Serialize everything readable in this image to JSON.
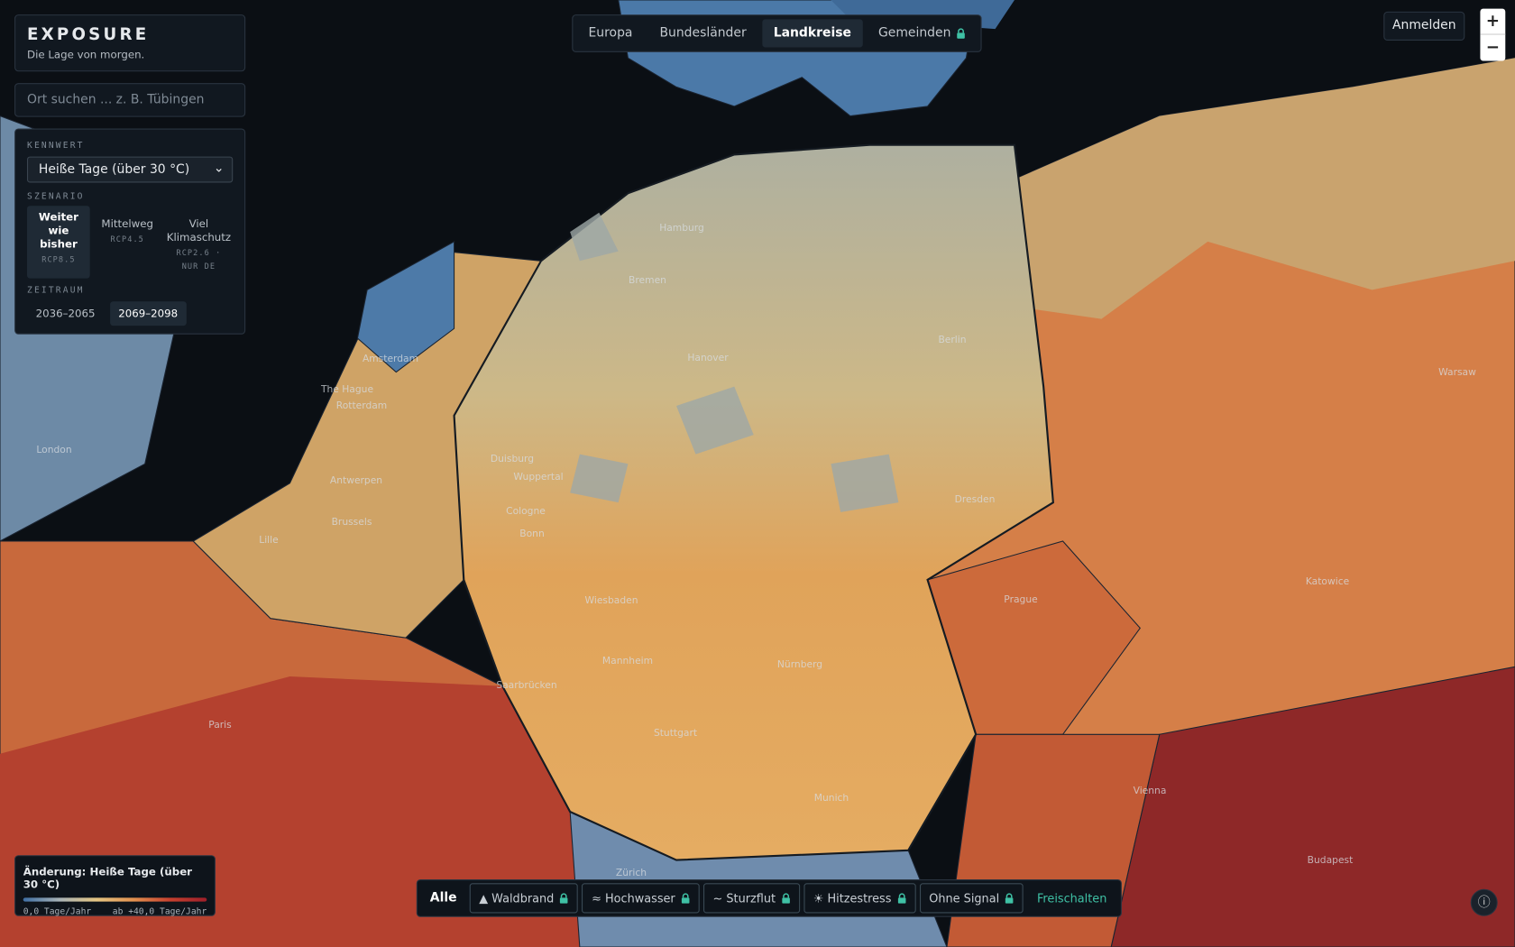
{
  "brand": {
    "logo": "EXPOSURE",
    "tagline": "Die Lage von morgen."
  },
  "search": {
    "placeholder": "Ort suchen ... z. B. Tübingen"
  },
  "panel": {
    "kennwert_label": "KENNWERT",
    "kennwert_value": "Heiße Tage (über 30 °C)",
    "szenario_label": "SZENARIO",
    "scenarios": [
      {
        "name": "Weiter wie bisher",
        "code": "RCP8.5"
      },
      {
        "name": "Mittelweg",
        "code": "RCP4.5"
      },
      {
        "name": "Viel Klimaschutz",
        "code": "RCP2.6 · NUR DE"
      }
    ],
    "zeitraum_label": "ZEITRAUM",
    "periods": [
      "2036–2065",
      "2069–2098"
    ]
  },
  "nav": {
    "tabs": [
      "Europa",
      "Bundesländer",
      "Landkreise",
      "Gemeinden"
    ]
  },
  "login": "Anmelden",
  "zoom": {
    "in": "+",
    "out": "−"
  },
  "legend": {
    "title": "Änderung: Heiße Tage (über 30 °C)",
    "min": "0,0 Tage/Jahr",
    "max": "ab +40,0 Tage/Jahr"
  },
  "filters": {
    "items": [
      "Alle",
      "▲ Waldbrand",
      "≈ Hochwasser",
      "~ Sturzflut",
      "☀ Hitzestress",
      "Ohne Signal"
    ],
    "unlock": "Freischalten"
  },
  "map": {
    "cities": [
      "Hamburg",
      "Bremen",
      "Berlin",
      "Hanover",
      "Amsterdam",
      "The Hague",
      "Rotterdam",
      "London",
      "Antwerpen",
      "Brussels",
      "Lille",
      "Duisburg",
      "Wuppertal",
      "Cologne",
      "Bonn",
      "Dresden",
      "Warsaw",
      "Wiesbaden",
      "Prague",
      "Katowice",
      "Mannheim",
      "Nürnberg",
      "Saarbrücken",
      "Paris",
      "Stuttgart",
      "Vienna",
      "Munich",
      "Zürich",
      "Budapest"
    ]
  }
}
